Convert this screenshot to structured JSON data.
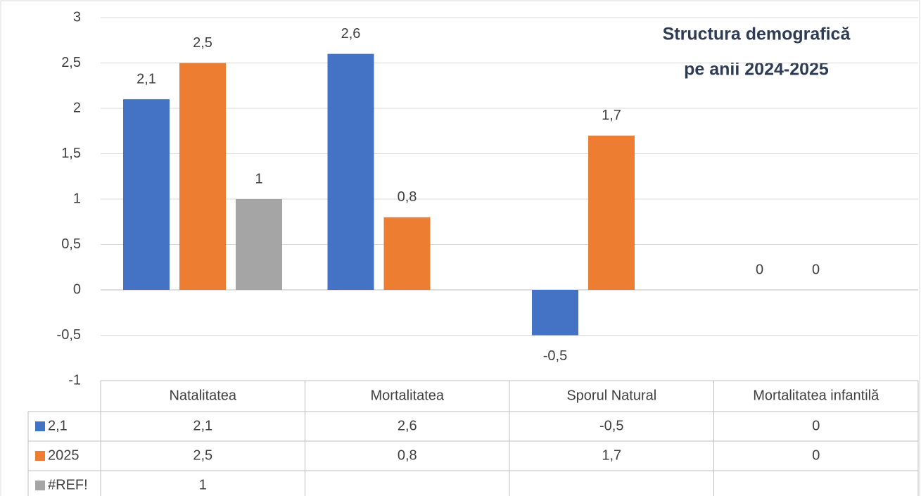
{
  "chart_data": {
    "type": "bar",
    "title": [
      "Structura demografică",
      "pe anii 2024-2025"
    ],
    "categories": [
      "Natalitatea",
      "Mortalitatea",
      "Sporul Natural",
      "Mortalitatea infantilă"
    ],
    "series": [
      {
        "name": "2,1",
        "color": "#4472c4",
        "values": [
          2.1,
          2.6,
          -0.5,
          0
        ],
        "value_labels": [
          "2,1",
          "2,6",
          "-0,5",
          "0"
        ]
      },
      {
        "name": "2025",
        "color": "#ed7d31",
        "values": [
          2.5,
          0.8,
          1.7,
          0
        ],
        "value_labels": [
          "2,5",
          "0,8",
          "1,7",
          "0"
        ]
      },
      {
        "name": "#REF!",
        "color": "#a5a5a5",
        "values": [
          1,
          null,
          null,
          null
        ]
      }
    ],
    "ylim": [
      -1,
      3
    ],
    "yticks": [
      -1,
      {
        "value": -0.5,
        "label": "-0,5"
      },
      0,
      {
        "value": 0.5,
        "label": "0,5"
      },
      1,
      {
        "value": 1.5,
        "label": "1,5"
      },
      2,
      {
        "value": 2.5,
        "label": "2,5"
      },
      3
    ],
    "grid": true,
    "data_table": true
  }
}
